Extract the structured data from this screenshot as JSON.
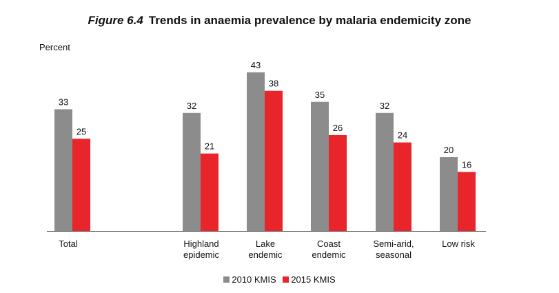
{
  "figure": {
    "number": "Figure 6.4",
    "title": "Trends in anaemia prevalence by malaria endemicity zone"
  },
  "chart_data": {
    "type": "bar",
    "title": "Trends in anaemia prevalence by malaria endemicity zone",
    "ylabel": "Percent",
    "xlabel": "",
    "ylim": [
      0,
      45
    ],
    "grid": false,
    "legend_position": "bottom",
    "categories": [
      [
        "Total"
      ],
      [
        "Highland",
        "epidemic"
      ],
      [
        "Lake",
        "endemic"
      ],
      [
        "Coast",
        "endemic"
      ],
      [
        "Semi-arid,",
        "seasonal"
      ],
      [
        "Low risk"
      ]
    ],
    "series": [
      {
        "name": "2010 KMIS",
        "color": "#8c8c8c",
        "values": [
          33,
          32,
          43,
          35,
          32,
          20
        ]
      },
      {
        "name": "2015 KMIS",
        "color": "#e8252a",
        "values": [
          25,
          21,
          38,
          26,
          24,
          16
        ]
      }
    ]
  }
}
